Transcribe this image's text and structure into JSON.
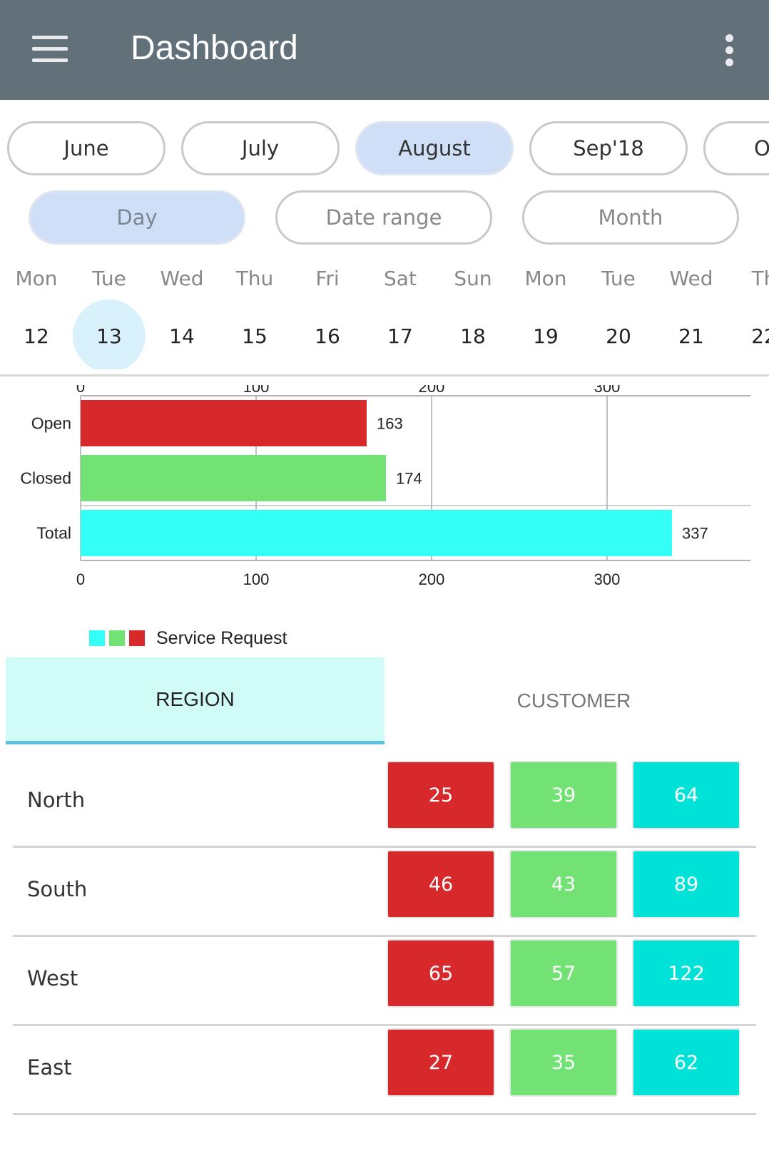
{
  "appbar": {
    "title": "Dashboard",
    "menu_icon": "hamburger-menu-icon",
    "more_icon": "more-vert-icon",
    "background": "#627079"
  },
  "months": [
    {
      "label": "June",
      "active": false
    },
    {
      "label": "July",
      "active": false
    },
    {
      "label": "August",
      "active": true
    },
    {
      "label": "Sep'18",
      "active": false
    },
    {
      "label": "O",
      "active": false
    }
  ],
  "modes": [
    {
      "label": "Day",
      "active": true
    },
    {
      "label": "Date range",
      "active": false
    },
    {
      "label": "Month",
      "active": false
    }
  ],
  "days": [
    {
      "name": "Mon",
      "num": "12",
      "active": false
    },
    {
      "name": "Tue",
      "num": "13",
      "active": true
    },
    {
      "name": "Wed",
      "num": "14",
      "active": false
    },
    {
      "name": "Thu",
      "num": "15",
      "active": false
    },
    {
      "name": "Fri",
      "num": "16",
      "active": false
    },
    {
      "name": "Sat",
      "num": "17",
      "active": false
    },
    {
      "name": "Sun",
      "num": "18",
      "active": false
    },
    {
      "name": "Mon",
      "num": "19",
      "active": false
    },
    {
      "name": "Tue",
      "num": "20",
      "active": false
    },
    {
      "name": "Wed",
      "num": "21",
      "active": false
    },
    {
      "name": "Th",
      "num": "22",
      "active": false
    }
  ],
  "chart_data": {
    "type": "bar",
    "orientation": "horizontal",
    "categories": [
      "Open",
      "Closed",
      "Total"
    ],
    "values": [
      163,
      174,
      337
    ],
    "colors": [
      "#d7292b",
      "#72e274",
      "#33fff7"
    ],
    "xlim": [
      0,
      370
    ],
    "ticks": [
      0,
      100,
      200,
      300
    ],
    "grid": true,
    "legend": {
      "label": "Service Request",
      "swatches": [
        "#33fff7",
        "#72e274",
        "#d7292b"
      ],
      "placement": "bottom-left"
    }
  },
  "tabs": [
    {
      "label": "REGION",
      "active": true
    },
    {
      "label": "CUSTOMER",
      "active": false
    }
  ],
  "table": {
    "colors": [
      "#d7292b",
      "#72e274",
      "#00e2d8"
    ],
    "rows": [
      {
        "label": "North",
        "values": [
          "25",
          "39",
          "64"
        ]
      },
      {
        "label": "South",
        "values": [
          "46",
          "43",
          "89"
        ]
      },
      {
        "label": "West",
        "values": [
          "65",
          "57",
          "122"
        ]
      },
      {
        "label": "East",
        "values": [
          "27",
          "35",
          "62"
        ]
      }
    ]
  }
}
